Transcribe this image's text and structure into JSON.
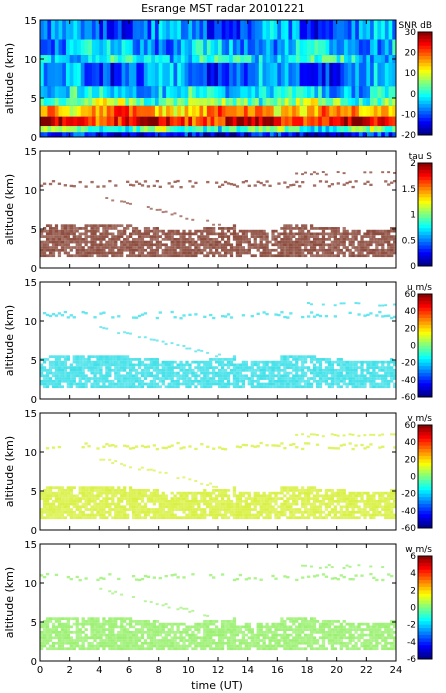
{
  "title": "Esrange MST radar 20101221",
  "xlabel": "time (UT)",
  "chart_data": [
    {
      "type": "heatmap",
      "title": "Esrange MST radar 20101221",
      "ylabel": "altitude (km)",
      "xlabel": "",
      "xlim": [
        0,
        24
      ],
      "ylim": [
        0,
        15
      ],
      "x_ticks": [
        "0",
        "2",
        "4",
        "6",
        "8",
        "10",
        "12",
        "14",
        "16",
        "18",
        "20",
        "22",
        "24"
      ],
      "y_ticks": [
        "0",
        "5",
        "10",
        "15"
      ],
      "colorbar": {
        "label": "SNR dB",
        "min": -20,
        "max": 30,
        "ticks": [
          "30",
          "20",
          "10",
          "0",
          "-10",
          "-20"
        ]
      },
      "colors": {
        "low": "#0a1a8c",
        "high": "#c01010",
        "background": "#2a5ad8"
      },
      "description_of_data": "signal-to-noise ratio, high (red) between 1.5 and 4 km, banded returns near 10 km"
    },
    {
      "type": "heatmap",
      "ylabel": "altitude (km)",
      "xlabel": "",
      "xlim": [
        0,
        24
      ],
      "ylim": [
        0,
        15
      ],
      "x_ticks": [
        "0",
        "2",
        "4",
        "6",
        "8",
        "10",
        "12",
        "14",
        "16",
        "18",
        "20",
        "22",
        "24"
      ],
      "y_ticks": [
        "0",
        "5",
        "10",
        "15"
      ],
      "colorbar": {
        "label": "tau S",
        "min": 0,
        "max": 2,
        "ticks": [
          "2",
          "1.5",
          "1",
          "0.5",
          "0"
        ]
      },
      "colors": {
        "dominant": "#8b4a3c"
      }
    },
    {
      "type": "heatmap",
      "ylabel": "altitude (km)",
      "xlabel": "",
      "xlim": [
        0,
        24
      ],
      "ylim": [
        0,
        15
      ],
      "x_ticks": [
        "0",
        "2",
        "4",
        "6",
        "8",
        "10",
        "12",
        "14",
        "16",
        "18",
        "20",
        "22",
        "24"
      ],
      "y_ticks": [
        "0",
        "5",
        "10",
        "15"
      ],
      "colorbar": {
        "label": "u m/s",
        "min": -60,
        "max": 60,
        "ticks": [
          "60",
          "40",
          "20",
          "0",
          "-20",
          "-40",
          "-60"
        ]
      },
      "colors": {
        "dominant": "#40e0e8"
      }
    },
    {
      "type": "heatmap",
      "ylabel": "altitude (km)",
      "xlabel": "",
      "xlim": [
        0,
        24
      ],
      "ylim": [
        0,
        15
      ],
      "x_ticks": [
        "0",
        "2",
        "4",
        "6",
        "8",
        "10",
        "12",
        "14",
        "16",
        "18",
        "20",
        "22",
        "24"
      ],
      "y_ticks": [
        "0",
        "5",
        "10",
        "15"
      ],
      "colorbar": {
        "label": "v m/s",
        "min": -60,
        "max": 60,
        "ticks": [
          "60",
          "40",
          "20",
          "0",
          "-20",
          "-40",
          "-60"
        ]
      },
      "colors": {
        "dominant": "#d8f040"
      }
    },
    {
      "type": "heatmap",
      "ylabel": "altitude (km)",
      "xlabel": "time (UT)",
      "xlim": [
        0,
        24
      ],
      "ylim": [
        0,
        15
      ],
      "x_ticks": [
        "0",
        "2",
        "4",
        "6",
        "8",
        "10",
        "12",
        "14",
        "16",
        "18",
        "20",
        "22",
        "24"
      ],
      "y_ticks": [
        "0",
        "5",
        "10",
        "15"
      ],
      "colorbar": {
        "label": "w m/s",
        "min": -6,
        "max": 6,
        "ticks": [
          "6",
          "4",
          "2",
          "0",
          "-2",
          "-4",
          "-6"
        ]
      },
      "colors": {
        "dominant": "#9af070"
      }
    }
  ]
}
